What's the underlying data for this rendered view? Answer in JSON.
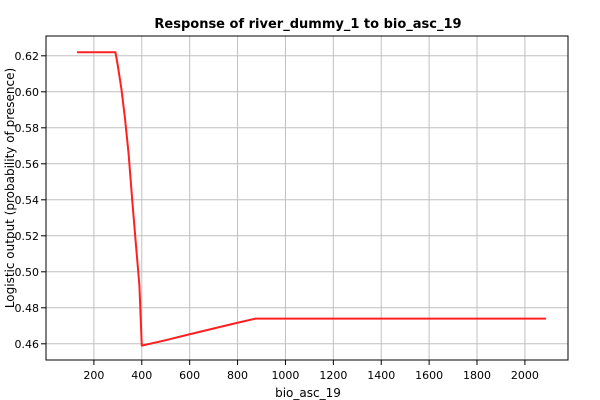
{
  "chart_data": {
    "type": "line",
    "title": "Response of river_dummy_1 to bio_asc_19",
    "xlabel": "bio_asc_19",
    "ylabel": "Logistic output (probability of presence)",
    "xlim": [
      0,
      2180
    ],
    "ylim": [
      0.451,
      0.631
    ],
    "x_ticks": [
      200,
      400,
      600,
      800,
      1000,
      1200,
      1400,
      1600,
      1800,
      2000
    ],
    "y_ticks": [
      0.46,
      0.48,
      0.5,
      0.52,
      0.54,
      0.56,
      0.58,
      0.6,
      0.62
    ],
    "grid": true,
    "colors": {
      "line": "#ff2020",
      "grid": "#c0c0c0",
      "axis": "#000000"
    },
    "series": [
      {
        "x": [
          133,
          200,
          290,
          300,
          315,
          330,
          345,
          360,
          375,
          390,
          400,
          500,
          600,
          700,
          800,
          875,
          1000,
          1200,
          1400,
          1600,
          1800,
          2000,
          2085
        ],
        "y": [
          0.622,
          0.622,
          0.622,
          0.6145,
          0.6015,
          0.585,
          0.5655,
          0.54,
          0.516,
          0.4925,
          0.459,
          0.462,
          0.4653,
          0.4685,
          0.4717,
          0.474,
          0.474,
          0.474,
          0.474,
          0.474,
          0.474,
          0.474,
          0.474
        ]
      }
    ]
  }
}
